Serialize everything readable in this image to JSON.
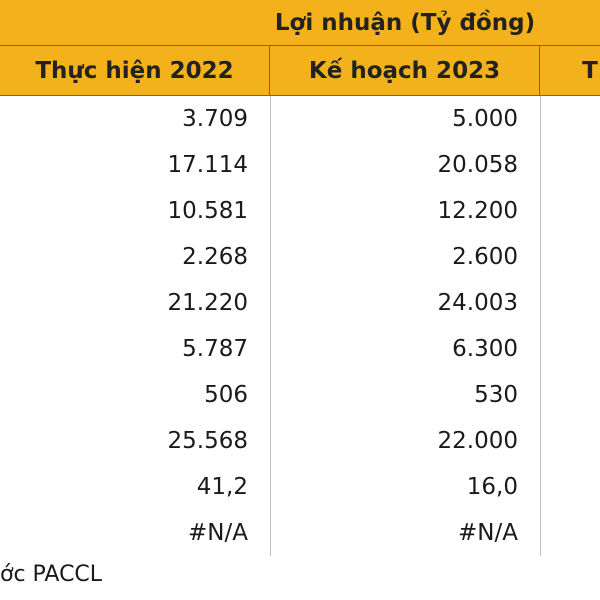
{
  "table": {
    "group_header": "Lợi nhuận (Tỷ đồng)",
    "columns": [
      "Thực hiện 2022",
      "Kế hoạch 2023",
      "T"
    ],
    "rows": [
      [
        "3.709",
        "5.000"
      ],
      [
        "17.114",
        "20.058"
      ],
      [
        "10.581",
        "12.200"
      ],
      [
        "2.268",
        "2.600"
      ],
      [
        "21.220",
        "24.003"
      ],
      [
        "5.787",
        "6.300"
      ],
      [
        "506",
        "530"
      ],
      [
        "25.568",
        "22.000"
      ],
      [
        "41,2",
        "16,0"
      ],
      [
        "#N/A",
        "#N/A"
      ]
    ]
  },
  "footer": "ớc PACCL"
}
